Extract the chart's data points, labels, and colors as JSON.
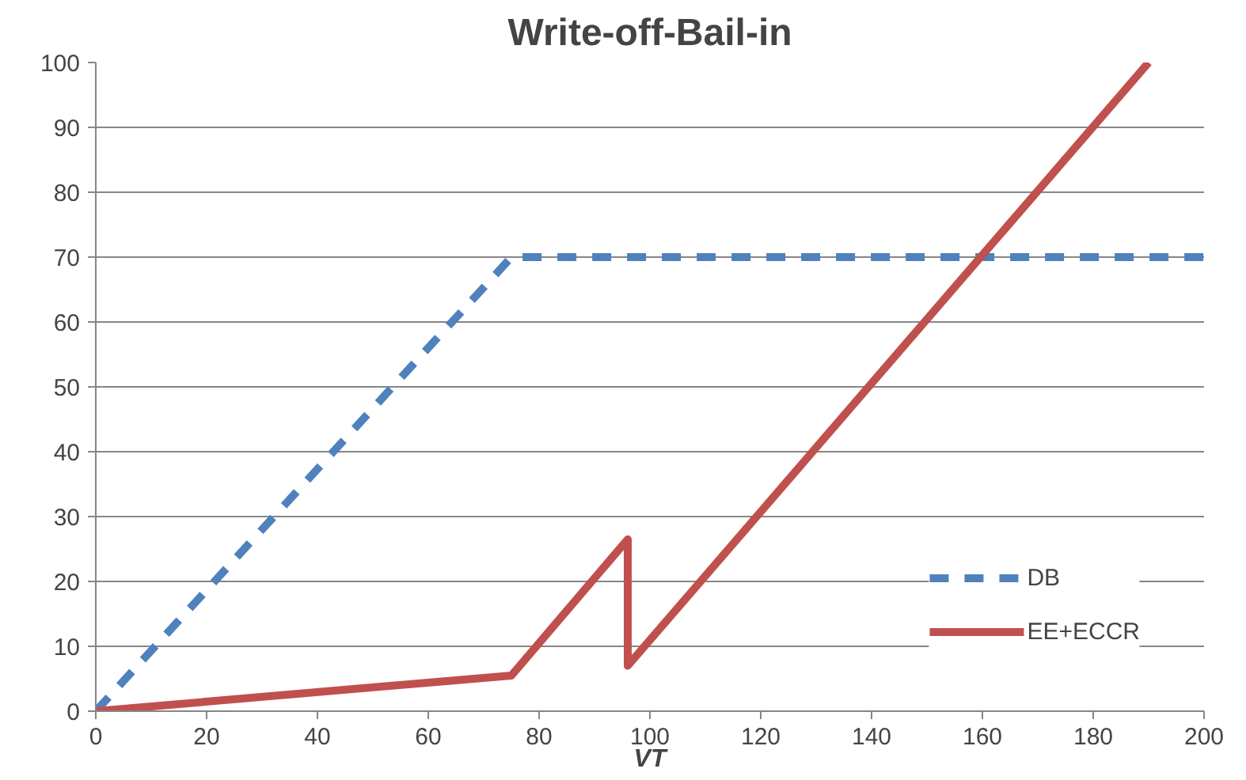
{
  "chart_data": {
    "type": "line",
    "title": "Write-off-Bail-in",
    "xlabel": "VT",
    "xlim": [
      0,
      200
    ],
    "xticks": [
      0,
      20,
      40,
      60,
      80,
      100,
      120,
      140,
      160,
      180,
      200
    ],
    "ylim": [
      0,
      100
    ],
    "yticks": [
      0,
      10,
      20,
      30,
      40,
      50,
      60,
      70,
      80,
      90,
      100
    ],
    "grid": "y",
    "legend": "bottom right",
    "marker": "none",
    "series": [
      {
        "name": "DB",
        "color": "#4f81bd",
        "line_style": "dashed",
        "x": [
          0,
          75,
          200
        ],
        "values": [
          0,
          70,
          70
        ]
      },
      {
        "name": "EE+ECCR",
        "color": "#c0504d",
        "line_style": "solid",
        "x": [
          0,
          75,
          96,
          96,
          190
        ],
        "values": [
          0,
          5.5,
          26.5,
          7,
          100
        ]
      }
    ]
  }
}
